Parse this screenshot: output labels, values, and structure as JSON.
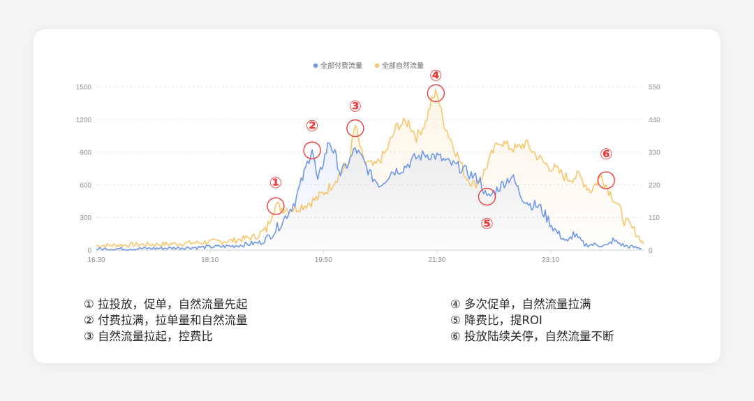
{
  "chart_data": {
    "type": "area",
    "legend_position": "top-center",
    "grid": true,
    "x_ticks": [
      "16:30",
      "18:10",
      "19:50",
      "21:30",
      "23:10"
    ],
    "y_left_ticks": [
      "0",
      "300",
      "600",
      "900",
      "1200",
      "1500"
    ],
    "y_right_ticks": [
      "0",
      "110",
      "220",
      "330",
      "440",
      "550"
    ],
    "ylim_left": [
      0,
      1500
    ],
    "ylim_right": [
      0,
      550
    ],
    "series": [
      {
        "name": "全部付费流量",
        "axis": "left",
        "color": "#6f97e8",
        "points": [
          [
            "16:30",
            10
          ],
          [
            "17:00",
            12
          ],
          [
            "17:30",
            18
          ],
          [
            "18:00",
            25
          ],
          [
            "18:30",
            38
          ],
          [
            "18:55",
            70
          ],
          [
            "19:05",
            150
          ],
          [
            "19:15",
            280
          ],
          [
            "19:25",
            450
          ],
          [
            "19:33",
            700
          ],
          [
            "19:40",
            940
          ],
          [
            "19:45",
            620
          ],
          [
            "19:50",
            820
          ],
          [
            "19:55",
            1000
          ],
          [
            "20:00",
            880
          ],
          [
            "20:05",
            700
          ],
          [
            "20:12",
            800
          ],
          [
            "20:18",
            930
          ],
          [
            "20:25",
            820
          ],
          [
            "20:32",
            680
          ],
          [
            "20:40",
            600
          ],
          [
            "20:50",
            720
          ],
          [
            "21:00",
            750
          ],
          [
            "21:10",
            840
          ],
          [
            "21:20",
            880
          ],
          [
            "21:30",
            860
          ],
          [
            "21:40",
            800
          ],
          [
            "21:50",
            760
          ],
          [
            "22:00",
            690
          ],
          [
            "22:08",
            640
          ],
          [
            "22:14",
            470
          ],
          [
            "22:20",
            530
          ],
          [
            "22:28",
            610
          ],
          [
            "22:36",
            680
          ],
          [
            "22:44",
            500
          ],
          [
            "22:52",
            420
          ],
          [
            "23:00",
            400
          ],
          [
            "23:08",
            280
          ],
          [
            "23:15",
            170
          ],
          [
            "23:20",
            120
          ],
          [
            "23:25",
            70
          ],
          [
            "23:30",
            150
          ],
          [
            "23:40",
            50
          ],
          [
            "23:50",
            50
          ],
          [
            "24:00",
            40
          ],
          [
            "24:05",
            90
          ],
          [
            "24:15",
            40
          ],
          [
            "24:30",
            15
          ]
        ]
      },
      {
        "name": "全部自然流量",
        "axis": "right",
        "color": "#f8c66c",
        "points": [
          [
            "16:30",
            15
          ],
          [
            "17:00",
            18
          ],
          [
            "17:30",
            20
          ],
          [
            "18:00",
            25
          ],
          [
            "18:30",
            32
          ],
          [
            "18:50",
            45
          ],
          [
            "19:00",
            70
          ],
          [
            "19:05",
            130
          ],
          [
            "19:08",
            150
          ],
          [
            "19:15",
            140
          ],
          [
            "19:25",
            140
          ],
          [
            "19:35",
            155
          ],
          [
            "19:45",
            175
          ],
          [
            "19:55",
            210
          ],
          [
            "20:05",
            260
          ],
          [
            "20:12",
            290
          ],
          [
            "20:18",
            420
          ],
          [
            "20:25",
            300
          ],
          [
            "20:35",
            280
          ],
          [
            "20:45",
            330
          ],
          [
            "20:55",
            420
          ],
          [
            "21:05",
            430
          ],
          [
            "21:12",
            380
          ],
          [
            "21:20",
            430
          ],
          [
            "21:25",
            500
          ],
          [
            "21:30",
            535
          ],
          [
            "21:35",
            440
          ],
          [
            "21:40",
            390
          ],
          [
            "21:48",
            320
          ],
          [
            "21:55",
            250
          ],
          [
            "22:03",
            220
          ],
          [
            "22:10",
            250
          ],
          [
            "22:18",
            320
          ],
          [
            "22:25",
            370
          ],
          [
            "22:32",
            350
          ],
          [
            "22:40",
            340
          ],
          [
            "22:48",
            360
          ],
          [
            "22:55",
            330
          ],
          [
            "23:05",
            290
          ],
          [
            "23:15",
            270
          ],
          [
            "23:25",
            240
          ],
          [
            "23:35",
            250
          ],
          [
            "23:45",
            200
          ],
          [
            "23:55",
            250
          ],
          [
            "24:00",
            210
          ],
          [
            "24:08",
            160
          ],
          [
            "24:15",
            100
          ],
          [
            "24:25",
            60
          ],
          [
            "24:32",
            20
          ]
        ]
      }
    ],
    "markers": [
      {
        "label": "①",
        "time": "19:08",
        "value_right": 148,
        "label_dy": -34
      },
      {
        "label": "②",
        "time": "19:40",
        "value_left": 915,
        "label_dy": -36
      },
      {
        "label": "③",
        "time": "20:18",
        "value_right": 410,
        "label_dy": -32
      },
      {
        "label": "④",
        "time": "21:29",
        "value_right": 528,
        "label_dy": -26
      },
      {
        "label": "⑤",
        "time": "22:14",
        "value_left": 490,
        "label_dy": 38
      },
      {
        "label": "⑥",
        "time": "23:59",
        "value_right": 235,
        "label_dy": -38
      }
    ]
  },
  "notes": {
    "left": [
      "① 拉投放，促单，自然流量先起",
      "② 付费拉满，拉单量和自然流量",
      "③ 自然流量拉起，控费比"
    ],
    "right": [
      "④ 多次促单，自然流量拉满",
      "⑤ 降费比，提ROI",
      "⑥ 投放陆续关停，自然流量不断"
    ]
  }
}
